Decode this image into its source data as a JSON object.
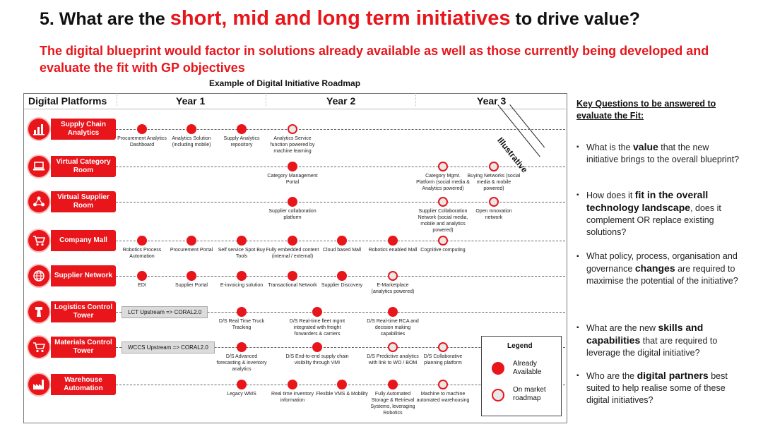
{
  "title": {
    "prefix": "5. What are the ",
    "highlight": "short, mid and long term initiatives",
    "suffix": " to drive value?"
  },
  "subtitle": "The digital blueprint would factor in solutions already available as well as those currently being developed and evaluate the fit with GP objectives",
  "roadmap_caption": "Example of Digital Initiative Roadmap",
  "headers": {
    "platforms": "Digital Platforms",
    "year1": "Year 1",
    "year2": "Year 2",
    "year3": "Year 3"
  },
  "illustrative": "Illustrative",
  "platforms": [
    {
      "label": "Supply Chain Analytics",
      "icon": "bar-chart-icon"
    },
    {
      "label": "Virtual Category Room",
      "icon": "laptop-icon"
    },
    {
      "label": "Virtual Supplier Room",
      "icon": "network-icon"
    },
    {
      "label": "Company Mall",
      "icon": "cart-icon"
    },
    {
      "label": "Supplier Network",
      "icon": "globe-icon"
    },
    {
      "label": "Logistics Control Tower",
      "icon": "tower-icon"
    },
    {
      "label": "Materials Control Tower",
      "icon": "cart-icon"
    },
    {
      "label": "Warehouse Automation",
      "icon": "factory-icon"
    }
  ],
  "grey_boxes": [
    {
      "row": 5,
      "text": "LCT Upstream => CORAL2.0"
    },
    {
      "row": 6,
      "text": "WCCS Upstream => CORAL2.0"
    }
  ],
  "initiatives": [
    {
      "row": 0,
      "col": 0,
      "status": "available",
      "label": "Procurement Analytics Dashboard"
    },
    {
      "row": 0,
      "col": 1,
      "status": "available",
      "label": "Analytics Solution (including mobile)"
    },
    {
      "row": 0,
      "col": 2,
      "status": "available",
      "label": "Supply Analytics repository"
    },
    {
      "row": 0,
      "col": 3,
      "status": "market",
      "label": "Analytics Service function powered by machine learning"
    },
    {
      "row": 1,
      "col": 3,
      "status": "available",
      "label": "Category Management Portal"
    },
    {
      "row": 1,
      "col": 6,
      "status": "market",
      "label": "Category Mgmt. Platform (social media & Analytics powered)"
    },
    {
      "row": 1,
      "col": 7,
      "status": "market",
      "label": "Buying Networks (social media & mobile powered)"
    },
    {
      "row": 2,
      "col": 3,
      "status": "available",
      "label": "Supplier collaboration platform"
    },
    {
      "row": 2,
      "col": 6,
      "status": "market",
      "label": "Supplier Collaboration Network (social media, mobile and analytics powered)"
    },
    {
      "row": 2,
      "col": 7,
      "status": "market",
      "label": "Open Innovation network"
    },
    {
      "row": 3,
      "col": 0,
      "status": "available",
      "label": "Robotics Process Automation"
    },
    {
      "row": 3,
      "col": 1,
      "status": "available",
      "label": "Procurement Portal"
    },
    {
      "row": 3,
      "col": 2,
      "status": "available",
      "label": "Self service Spot Buy Tools"
    },
    {
      "row": 3,
      "col": 3,
      "status": "available",
      "label": "Fully embedded content (internal / external)"
    },
    {
      "row": 3,
      "col": 4,
      "status": "available",
      "label": "Cloud based Mall"
    },
    {
      "row": 3,
      "col": 5,
      "status": "available",
      "label": "Robotics enabled Mall"
    },
    {
      "row": 3,
      "col": 6,
      "status": "market",
      "label": "Cognitive computing"
    },
    {
      "row": 4,
      "col": 0,
      "status": "available",
      "label": "EDI"
    },
    {
      "row": 4,
      "col": 1,
      "status": "available",
      "label": "Supplier Portal"
    },
    {
      "row": 4,
      "col": 2,
      "status": "available",
      "label": "E-invoicing solution"
    },
    {
      "row": 4,
      "col": 3,
      "status": "available",
      "label": "Transactional Network"
    },
    {
      "row": 4,
      "col": 4,
      "status": "available",
      "label": "Supplier Discovery"
    },
    {
      "row": 4,
      "col": 5,
      "status": "market",
      "label": "E-Marketplace (analytics powered)"
    },
    {
      "row": 5,
      "col": 2,
      "status": "available",
      "label": "D/S Real Time Truck Tracking"
    },
    {
      "row": 5,
      "col": 3.5,
      "status": "available",
      "label": "D/S Real-time fleet mgmt integrated with freight forwarders & carriers"
    },
    {
      "row": 5,
      "col": 5,
      "status": "available",
      "label": "D/S Real-time RCA and decision making capabilities"
    },
    {
      "row": 6,
      "col": 2,
      "status": "available",
      "label": "D/S Advanced forecasting & inventory analytics"
    },
    {
      "row": 6,
      "col": 3.5,
      "status": "available",
      "label": "D/S End-to-end supply chain visibility through VMI"
    },
    {
      "row": 6,
      "col": 5,
      "status": "market",
      "label": "D/S Predictive analytics with link to WO / BOM"
    },
    {
      "row": 6,
      "col": 6,
      "status": "market",
      "label": "D/S Collaborative planning platform"
    },
    {
      "row": 7,
      "col": 2,
      "status": "available",
      "label": "Legacy WMS"
    },
    {
      "row": 7,
      "col": 3,
      "status": "available",
      "label": "Real time inventory information"
    },
    {
      "row": 7,
      "col": 4,
      "status": "available",
      "label": "Flexible VMS & Mobility"
    },
    {
      "row": 7,
      "col": 5,
      "status": "available",
      "label": "Fully Automated Storage & Retrieval Systems, leveraging Robotics"
    },
    {
      "row": 7,
      "col": 6,
      "status": "market",
      "label": "Machine to machine automated warehousing"
    }
  ],
  "legend": {
    "title": "Legend",
    "available": "Already Available",
    "market": "On market roadmap"
  },
  "key_questions_title": "Key Questions to be answered to evaluate the Fit:",
  "questions": [
    {
      "parts": [
        {
          "t": "What is the "
        },
        {
          "t": "value",
          "b": true
        },
        {
          "t": " that the new initiative brings to the overall blueprint?"
        }
      ]
    },
    {
      "parts": [
        {
          "t": "How does it "
        },
        {
          "t": "fit in the overall technology landscape",
          "b": true
        },
        {
          "t": ", does it complement OR replace existing solutions?"
        }
      ]
    },
    {
      "parts": [
        {
          "t": "What policy, process, organisation and governance "
        },
        {
          "t": "changes",
          "b": true
        },
        {
          "t": " are required to maximise the potential of the initiative?"
        }
      ]
    },
    {
      "parts": [
        {
          "t": "What are the new "
        },
        {
          "t": "skills and capabilities",
          "b": true
        },
        {
          "t": " that are required to leverage the digital initiative?"
        }
      ]
    },
    {
      "parts": [
        {
          "t": "Who are the "
        },
        {
          "t": "digital partners",
          "b": true
        },
        {
          "t": " best suited to help realise some of these digital initiatives?"
        }
      ]
    }
  ]
}
